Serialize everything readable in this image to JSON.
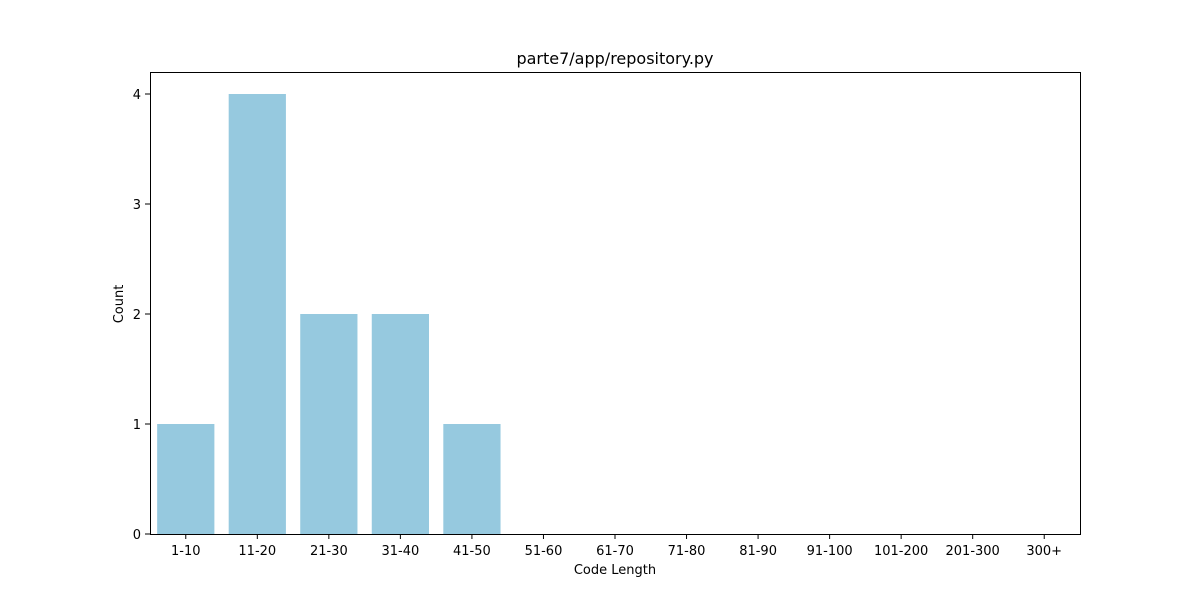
{
  "chart_data": {
    "type": "bar",
    "title": "parte7/app/repository.py",
    "xlabel": "Code Length",
    "ylabel": "Count",
    "categories": [
      "1-10",
      "11-20",
      "21-30",
      "31-40",
      "41-50",
      "51-60",
      "61-70",
      "71-80",
      "81-90",
      "91-100",
      "101-200",
      "201-300",
      "300+"
    ],
    "values": [
      1,
      4,
      2,
      2,
      1,
      0,
      0,
      0,
      0,
      0,
      0,
      0,
      0
    ],
    "ylim": [
      0,
      4.2
    ],
    "yticks": [
      0,
      1,
      2,
      3,
      4
    ],
    "grid": false,
    "bar_color": "#96c9df"
  }
}
